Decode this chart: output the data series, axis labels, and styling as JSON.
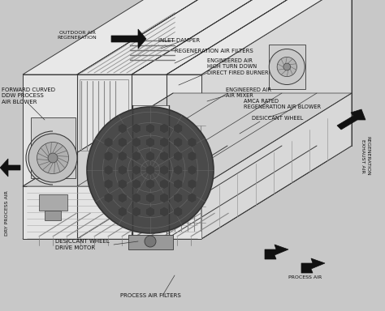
{
  "bg_color": "#c8c8c8",
  "line_color": "#3a3a3a",
  "fill_light": "#f0f0f0",
  "fill_mid": "#d8d8d8",
  "fill_dark": "#b8b8b8",
  "fill_darker": "#909090",
  "desiccant_color": "#5a5a5a",
  "labels": {
    "inlet_damper": "INLET DAMPER",
    "regen_filters": "REGENERATION AIR FILTERS",
    "burner": "ENGINEERED AIR\nHIGH TURN DOWN\nDIRECT FIRED BURNER",
    "air_mixer": "ENGINEERED AIR\nAIR MIXER",
    "regen_blower": "AMCA RATED\nREGENERATION AIR BLOWER",
    "desiccant": "DESICCANT WHEEL",
    "process_blower": "FORWARD CURVED\nDDW PROCESS\nAIR BLOWER",
    "drive_motor": "DESICCANT WHEEL\nDRIVE MOTOR",
    "process_filters": "PROCESS AIR FILTERS",
    "dry_process": "DRY PROCESS AIR",
    "outdoor_regen": "OUTDOOR AIR\nREGENERATION",
    "regen_exhaust": "REGENERATION\nEXHAUST AIR",
    "process_air_in": "PROCESS AIR"
  }
}
